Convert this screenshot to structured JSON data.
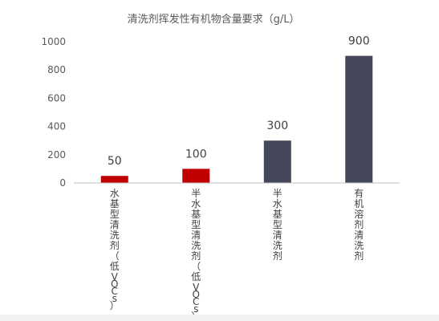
{
  "chart_data": {
    "type": "bar",
    "title": "清洗剂挥发性有机物含量要求（g/L）",
    "xlabel": "",
    "ylabel": "",
    "ylim": [
      0,
      1000
    ],
    "yticks": [
      0,
      200,
      400,
      600,
      800,
      1000
    ],
    "grid": false,
    "legend": "none",
    "categories": [
      "水基型清洗剂（低VOCs）",
      "半水基型清洗剂（低VOCs）",
      "半水基型清洗剂",
      "有机溶剂清洗剂"
    ],
    "values": [
      50,
      100,
      300,
      900
    ],
    "colors": [
      "#c00000",
      "#c00000",
      "#44475a",
      "#44475a"
    ]
  }
}
